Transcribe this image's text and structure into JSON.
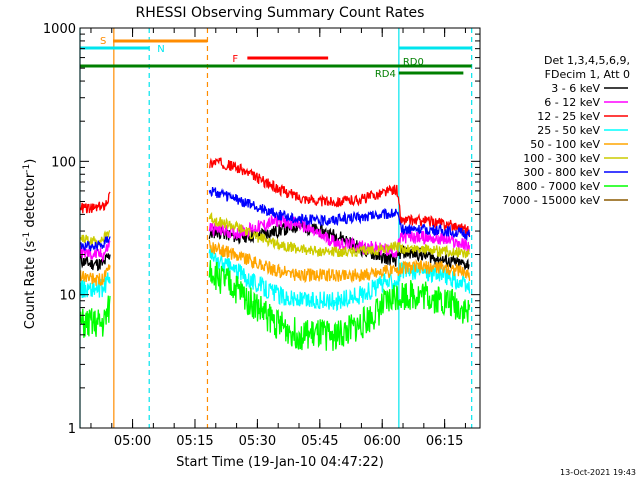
{
  "chart_data": {
    "type": "line",
    "title": "RHESSI Observing Summary Count Rates",
    "xlabel": "Start Time (19-Jan-10 04:47:22)",
    "ylabel": "Count Rate (s⁻¹ detector⁻¹)",
    "ylabel_plain": "Count Rate (s",
    "ylabel_sup1": "-1",
    "ylabel_mid": " detector",
    "ylabel_sup2": "-1",
    "ylabel_end": ")",
    "yscale": "log",
    "ylim": [
      1,
      1000
    ],
    "xlim": [
      "04:47:22",
      "06:23:30"
    ],
    "x_ticks": [
      "05:00",
      "05:15",
      "05:30",
      "05:45",
      "06:00",
      "06:15"
    ],
    "y_ticks": [
      "1",
      "10",
      "100",
      "1000"
    ],
    "grid": false,
    "legend_header": [
      "Det 1,3,4,5,6,9,",
      "FDecim 1, Att 0"
    ],
    "legend_position": "right",
    "footer_date": "13-Oct-2021 19:43",
    "state_bars": [
      {
        "label": "S",
        "color": "#ff8c00",
        "x0": "04:47:22",
        "x1": "05:18:00",
        "level": 1
      },
      {
        "label": "N",
        "color": "#00e5ee",
        "x0": "04:47:22",
        "x1": "05:04:00",
        "level": 2
      },
      {
        "label": "N",
        "color": "#00e5ee",
        "x0": "06:04:00",
        "x1": "06:21:30",
        "level": 2
      },
      {
        "label": "F",
        "color": "#ff0000",
        "x0": "05:23:30",
        "x1": "05:47:00",
        "level": 3
      },
      {
        "label": "RD0",
        "color": "#007f00",
        "x0": "04:47:22",
        "x1": "06:21:30",
        "level": 4
      },
      {
        "label": "RD4",
        "color": "#007f00",
        "x0": "06:04:00",
        "x1": "06:19:30",
        "level": 5
      }
    ],
    "vlines": [
      {
        "x": "04:47:22",
        "color": "#00e5ee",
        "style": "solid"
      },
      {
        "x": "04:55:30",
        "color": "#ff8c00",
        "style": "solid"
      },
      {
        "x": "05:04:00",
        "color": "#00e5ee",
        "style": "dashed"
      },
      {
        "x": "05:18:00",
        "color": "#ff8c00",
        "style": "dashed"
      },
      {
        "x": "06:04:00",
        "color": "#00e5ee",
        "style": "solid"
      },
      {
        "x": "06:21:30",
        "color": "#00e5ee",
        "style": "dashed"
      }
    ],
    "x_times": [
      "04:47:30",
      "04:50:00",
      "04:53:00",
      "04:54:30",
      "05:18:30",
      "05:20:00",
      "05:25:00",
      "05:30:00",
      "05:35:00",
      "05:40:00",
      "05:45:00",
      "05:50:00",
      "05:55:00",
      "06:00:00",
      "06:03:30",
      "06:04:30",
      "06:10:00",
      "06:15:00",
      "06:19:00",
      "06:21:00"
    ],
    "series": [
      {
        "name": "3 - 6 keV",
        "color": "#000000",
        "values": [
          18,
          17,
          17,
          20,
          28,
          30,
          27,
          28,
          30,
          33,
          30,
          27,
          22,
          19,
          18,
          21,
          20,
          18,
          17,
          17
        ]
      },
      {
        "name": "6 - 12 keV",
        "color": "#ff00ff",
        "values": [
          21,
          20,
          20,
          24,
          32,
          31,
          29,
          32,
          36,
          34,
          28,
          24,
          23,
          22,
          21,
          27,
          27,
          26,
          24,
          23
        ]
      },
      {
        "name": "12 - 25 keV",
        "color": "#ff0000",
        "values": [
          45,
          44,
          46,
          55,
          95,
          100,
          90,
          75,
          62,
          54,
          50,
          50,
          52,
          58,
          62,
          36,
          36,
          34,
          32,
          30
        ]
      },
      {
        "name": "25 - 50 keV",
        "color": "#00ffff",
        "values": [
          11,
          11,
          11,
          14,
          20,
          18,
          15,
          12,
          10,
          9,
          9,
          9,
          10,
          12,
          13,
          15,
          15,
          14,
          12,
          11
        ]
      },
      {
        "name": "50 - 100 keV",
        "color": "#ffa500",
        "values": [
          14,
          13,
          13,
          16,
          23,
          22,
          20,
          17,
          15,
          14,
          14,
          14,
          14,
          15,
          15,
          16,
          16,
          16,
          15,
          14
        ]
      },
      {
        "name": "100 - 300 keV",
        "color": "#cccc00",
        "values": [
          27,
          25,
          26,
          30,
          38,
          36,
          32,
          27,
          24,
          22,
          21,
          21,
          21,
          22,
          23,
          22,
          22,
          21,
          21,
          20
        ]
      },
      {
        "name": "300 - 800 keV",
        "color": "#0000ff",
        "values": [
          24,
          23,
          24,
          28,
          60,
          58,
          52,
          45,
          40,
          37,
          36,
          37,
          38,
          40,
          41,
          31,
          31,
          30,
          29,
          28
        ]
      },
      {
        "name": "800 - 7000 keV",
        "color": "#00ff00",
        "values": [
          6,
          6,
          6,
          8,
          16,
          14,
          11,
          8,
          6,
          5,
          5,
          5,
          6,
          8,
          10,
          10,
          10,
          9,
          8,
          7
        ]
      },
      {
        "name": "7000 - 15000 keV",
        "color": "#8b5a00",
        "values": [
          null,
          null,
          null,
          null,
          null,
          null,
          null,
          null,
          null,
          null,
          null,
          null,
          null,
          null,
          null,
          null,
          null,
          null,
          null,
          null
        ]
      }
    ]
  }
}
